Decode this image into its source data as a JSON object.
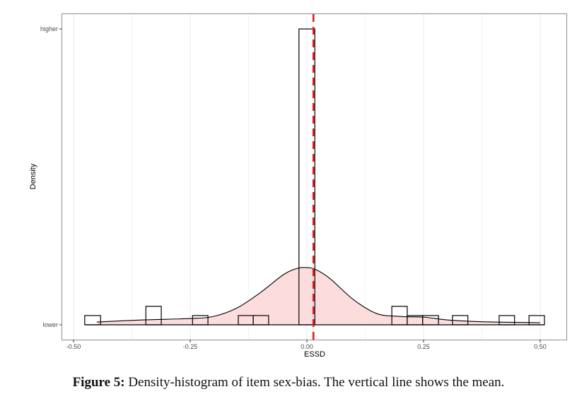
{
  "caption": {
    "label": "Figure 5:",
    "text": "Density-histogram of item sex-bias. The vertical line shows the mean."
  },
  "colors": {
    "fill": "#fcdcdc",
    "bar_stroke": "#000000",
    "mean_line": "#e41a1c",
    "grid": "#ebebeb",
    "panel_border": "#8c8c8c"
  },
  "chart_data": {
    "type": "bar",
    "subtype": "histogram_with_density",
    "title": "",
    "xlabel": "ESSD",
    "ylabel": "Density",
    "xlim": [
      -0.5,
      0.5
    ],
    "x_ticks": [
      -0.5,
      -0.25,
      0.0,
      0.25,
      0.5
    ],
    "x_tick_labels": [
      "-0.50",
      "-0.25",
      "0.00",
      "0.25",
      "0.50"
    ],
    "y_tick_labels": [
      "lower",
      "higher"
    ],
    "bin_width": 0.0333,
    "bins": [
      {
        "x0": -0.476,
        "x1": -0.442,
        "count": 1
      },
      {
        "x0": -0.345,
        "x1": -0.312,
        "count": 2
      },
      {
        "x0": -0.245,
        "x1": -0.212,
        "count": 1
      },
      {
        "x0": -0.147,
        "x1": -0.115,
        "count": 1
      },
      {
        "x0": -0.115,
        "x1": -0.082,
        "count": 1
      },
      {
        "x0": -0.017,
        "x1": 0.017,
        "count": 32
      },
      {
        "x0": 0.182,
        "x1": 0.215,
        "count": 2
      },
      {
        "x0": 0.215,
        "x1": 0.248,
        "count": 1
      },
      {
        "x0": 0.248,
        "x1": 0.282,
        "count": 1
      },
      {
        "x0": 0.312,
        "x1": 0.345,
        "count": 1
      },
      {
        "x0": 0.412,
        "x1": 0.445,
        "count": 1
      },
      {
        "x0": 0.476,
        "x1": 0.509,
        "count": 1
      }
    ],
    "density_curve": {
      "x": [
        -0.45,
        -0.35,
        -0.25,
        -0.2,
        -0.15,
        -0.1,
        -0.05,
        -0.02,
        0.0,
        0.02,
        0.05,
        0.1,
        0.15,
        0.2,
        0.25,
        0.3,
        0.35,
        0.4,
        0.45,
        0.5
      ],
      "y_rel": [
        0.4,
        0.7,
        0.9,
        1.2,
        2.4,
        4.6,
        7.2,
        8.1,
        8.2,
        7.9,
        6.6,
        3.6,
        1.6,
        1.2,
        1.1,
        0.7,
        0.5,
        0.4,
        0.35,
        0.3
      ]
    },
    "mean": 0.014,
    "mean_line_style": "dashed red vertical line",
    "grid": true,
    "legend": null
  }
}
